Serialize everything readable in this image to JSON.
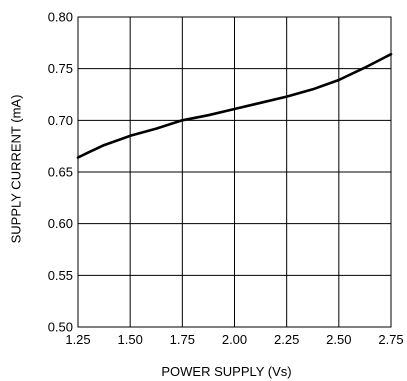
{
  "chart_data": {
    "type": "line",
    "title": "",
    "xlabel": "POWER SUPPLY (Vs)",
    "ylabel": "SUPPLY CURRENT (mA)",
    "xlim": [
      1.25,
      2.75
    ],
    "ylim": [
      0.5,
      0.8
    ],
    "x_ticks": [
      "1.25",
      "1.50",
      "1.75",
      "2.00",
      "2.25",
      "2.50",
      "2.75"
    ],
    "y_ticks": [
      "0.80",
      "0.75",
      "0.70",
      "0.65",
      "0.60",
      "0.55",
      "0.50"
    ],
    "grid": true,
    "series": [
      {
        "x": [
          1.25,
          1.3,
          1.375,
          1.5,
          1.625,
          1.75,
          1.875,
          2.0,
          2.125,
          2.25,
          2.375,
          2.5,
          2.625,
          2.75
        ],
        "values": [
          0.664,
          0.669,
          0.676,
          0.685,
          0.692,
          0.7,
          0.705,
          0.711,
          0.717,
          0.723,
          0.73,
          0.739,
          0.751,
          0.764
        ]
      }
    ],
    "colors": {
      "line": "#000000",
      "grid": "#000000",
      "background": "#ffffff"
    }
  }
}
